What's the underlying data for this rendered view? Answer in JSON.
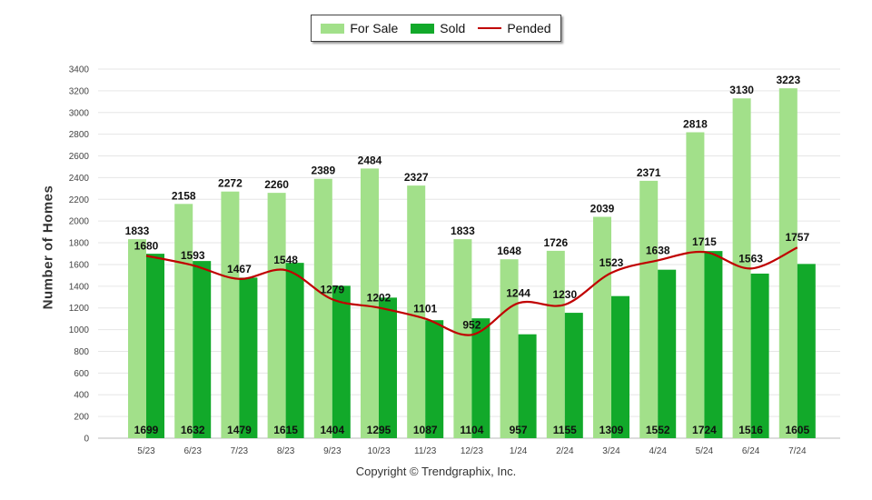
{
  "chart_data": {
    "type": "bar",
    "categories": [
      "5/23",
      "6/23",
      "7/23",
      "8/23",
      "9/23",
      "10/23",
      "11/23",
      "12/23",
      "1/24",
      "2/24",
      "3/24",
      "4/24",
      "5/24",
      "6/24",
      "7/24"
    ],
    "series": [
      {
        "name": "For Sale",
        "type": "bar",
        "color": "#a2e08a",
        "values": [
          1833,
          2158,
          2272,
          2260,
          2389,
          2484,
          2327,
          1833,
          1648,
          1726,
          2039,
          2371,
          2818,
          3130,
          3223
        ]
      },
      {
        "name": "Sold",
        "type": "bar",
        "color": "#12a92a",
        "values": [
          1699,
          1632,
          1479,
          1615,
          1404,
          1295,
          1087,
          1104,
          957,
          1155,
          1309,
          1552,
          1724,
          1516,
          1605
        ]
      },
      {
        "name": "Pended",
        "type": "line",
        "color": "#c00000",
        "values": [
          1680,
          1593,
          1467,
          1548,
          1279,
          1202,
          1101,
          952,
          1244,
          1230,
          1523,
          1638,
          1715,
          1563,
          1757
        ]
      }
    ],
    "ylabel": "Number of Homes",
    "ylim": [
      0,
      3400
    ],
    "yticks": [
      0,
      200,
      400,
      600,
      800,
      1000,
      1200,
      1400,
      1600,
      1800,
      2000,
      2200,
      2400,
      2600,
      2800,
      3000,
      3200,
      3400
    ],
    "grid": true,
    "legend_position": "top-center"
  },
  "legend": {
    "for_sale": "For Sale",
    "sold": "Sold",
    "pended": "Pended"
  },
  "footer": "Copyright © Trendgraphix, Inc."
}
